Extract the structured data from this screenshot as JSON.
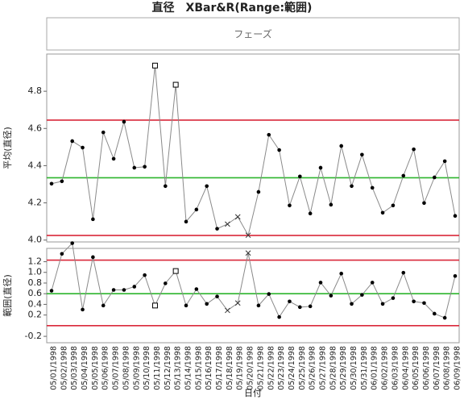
{
  "chart_data": {
    "type": "control",
    "title": "直径　XBar&R(Range:範囲)",
    "phase_label": "フェーズ",
    "x_label": "日付",
    "categories": [
      "05/01/1998",
      "05/02/1998",
      "05/03/1998",
      "05/04/1998",
      "05/05/1998",
      "05/06/1998",
      "05/07/1998",
      "05/08/1998",
      "05/09/1998",
      "05/10/1998",
      "05/11/1998",
      "05/12/1998",
      "05/13/1998",
      "05/14/1998",
      "05/15/1998",
      "05/16/1998",
      "05/17/1998",
      "05/18/1998",
      "05/19/1998",
      "05/20/1998",
      "05/21/1998",
      "05/22/1998",
      "05/23/1998",
      "05/24/1998",
      "05/25/1998",
      "05/26/1998",
      "05/27/1998",
      "05/28/1998",
      "05/29/1998",
      "05/30/1998",
      "05/31/1998",
      "06/01/1998",
      "06/02/1998",
      "06/03/1998",
      "06/04/1998",
      "06/05/1998",
      "06/06/1998",
      "06/07/1998",
      "06/08/1998",
      "06/09/1998"
    ],
    "line_color": "#8a8a8a",
    "panels": [
      {
        "y_label": "平均(直径)",
        "ylim": [
          3.99,
          5.0
        ],
        "yticks": [
          {
            "value": 4,
            "label": "4.0"
          },
          4.2,
          4.4,
          4.6,
          4.8
        ],
        "values": [
          4.303,
          4.316,
          4.532,
          4.497,
          4.112,
          4.579,
          4.437,
          4.636,
          4.389,
          4.394,
          4.938,
          4.29,
          4.835,
          4.099,
          4.164,
          4.29,
          4.061,
          4.086,
          4.125,
          4.026,
          4.259,
          4.566,
          4.484,
          4.186,
          4.342,
          4.143,
          4.389,
          4.19,
          4.506,
          4.29,
          4.459,
          4.281,
          4.147,
          4.186,
          4.346,
          4.488,
          4.199,
          4.337,
          4.424,
          4.13
        ],
        "markers": [
          "dot",
          "dot",
          "dot",
          "dot",
          "dot",
          "dot",
          "dot",
          "dot",
          "dot",
          "dot",
          "square",
          "dot",
          "square",
          "dot",
          "dot",
          "dot",
          "dot",
          "x",
          "x",
          "x",
          "dot",
          "dot",
          "dot",
          "dot",
          "dot",
          "dot",
          "dot",
          "dot",
          "dot",
          "dot",
          "dot",
          "dot",
          "dot",
          "dot",
          "dot",
          "dot",
          "dot",
          "dot",
          "dot",
          "dot"
        ],
        "limits": [
          {
            "value": 4.645,
            "color": "#d9283a"
          },
          {
            "value": 4.335,
            "color": "#2db52d"
          },
          {
            "value": 4.025,
            "color": "#d9283a"
          }
        ]
      },
      {
        "y_label": "範囲(直径)",
        "ylim": [
          -0.32,
          1.45
        ],
        "yticks": [
          -0.2,
          0.2,
          0.4,
          0.6,
          0.8,
          {
            "value": 1,
            "label": "1.0"
          },
          1.2
        ],
        "values": [
          0.655,
          1.348,
          1.548,
          0.302,
          1.286,
          0.378,
          0.671,
          0.671,
          0.732,
          0.948,
          0.378,
          0.794,
          1.025,
          0.378,
          0.686,
          0.409,
          0.548,
          0.286,
          0.425,
          1.363,
          0.378,
          0.594,
          0.163,
          0.455,
          0.348,
          0.363,
          0.809,
          0.563,
          0.978,
          0.409,
          0.578,
          0.809,
          0.409,
          0.517,
          0.994,
          0.455,
          0.425,
          0.225,
          0.148,
          0.932
        ],
        "markers": [
          "dot",
          "dot",
          "dot",
          "dot",
          "dot",
          "dot",
          "dot",
          "dot",
          "dot",
          "dot",
          "square",
          "dot",
          "square",
          "dot",
          "dot",
          "dot",
          "dot",
          "x",
          "x",
          "x",
          "dot",
          "dot",
          "dot",
          "dot",
          "dot",
          "dot",
          "dot",
          "dot",
          "dot",
          "dot",
          "dot",
          "dot",
          "dot",
          "dot",
          "dot",
          "dot",
          "dot",
          "dot",
          "dot",
          "dot"
        ],
        "limits": [
          {
            "value": 1.23,
            "color": "#d9283a"
          },
          {
            "value": 0.6,
            "color": "#2db52d"
          },
          {
            "value": 0,
            "color": "#d9283a"
          }
        ]
      }
    ]
  }
}
